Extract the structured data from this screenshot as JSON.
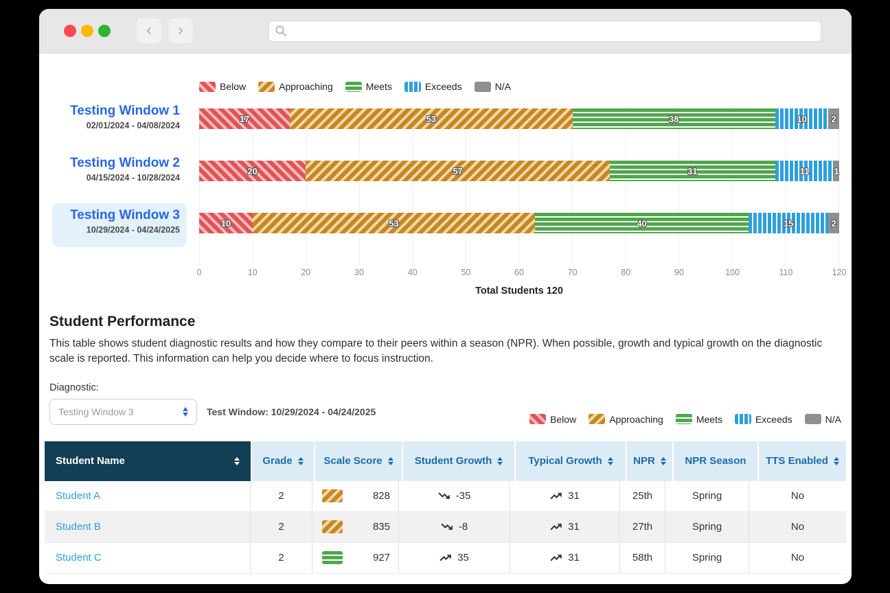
{
  "browser": {
    "search_placeholder": ""
  },
  "legend": {
    "items": [
      {
        "label": "Below",
        "band": "below"
      },
      {
        "label": "Approaching",
        "band": "approaching"
      },
      {
        "label": "Meets",
        "band": "meets"
      },
      {
        "label": "Exceeds",
        "band": "exceeds"
      },
      {
        "label": "N/A",
        "band": "na"
      }
    ]
  },
  "chart": {
    "total": 120,
    "x_ticks": [
      "0",
      "10",
      "20",
      "30",
      "40",
      "50",
      "60",
      "70",
      "80",
      "90",
      "100",
      "110",
      "120"
    ],
    "x_label": "Total Students 120",
    "rows": [
      {
        "title": "Testing Window 1",
        "dates": "02/01/2024 - 04/08/2024",
        "selected": "false",
        "values": [
          17,
          53,
          38,
          10,
          2
        ]
      },
      {
        "title": "Testing Window 2",
        "dates": "04/15/2024 - 10/28/2024",
        "selected": "false",
        "values": [
          20,
          57,
          31,
          11,
          1
        ]
      },
      {
        "title": "Testing Window 3",
        "dates": "10/29/2024 - 04/24/2025",
        "selected": "true",
        "values": [
          10,
          53,
          40,
          15,
          2
        ]
      }
    ]
  },
  "chart_data": {
    "type": "bar",
    "stacked": true,
    "orientation": "horizontal",
    "categories": [
      "Testing Window 1 (02/01/2024 - 04/08/2024)",
      "Testing Window 2 (04/15/2024 - 10/28/2024)",
      "Testing Window 3 (10/29/2024 - 04/24/2025)"
    ],
    "series": [
      {
        "name": "Below",
        "values": [
          17,
          20,
          10
        ]
      },
      {
        "name": "Approaching",
        "values": [
          53,
          57,
          53
        ]
      },
      {
        "name": "Meets",
        "values": [
          38,
          31,
          40
        ]
      },
      {
        "name": "Exceeds",
        "values": [
          10,
          11,
          15
        ]
      },
      {
        "name": "N/A",
        "values": [
          2,
          1,
          2
        ]
      }
    ],
    "xlabel": "Total Students 120",
    "xlim": [
      0,
      120
    ],
    "x_tick_step": 10,
    "legend_position": "top",
    "grid": true,
    "colors": {
      "Below": "#e05457",
      "Approaching": "#c8871f",
      "Meets": "#4fa84b",
      "Exceeds": "#2da0dc",
      "N/A": "#8f8f8f"
    }
  },
  "performance": {
    "title": "Student Performance",
    "description": "This table shows student diagnostic results and how they compare to their peers within a season (NPR). When possible, growth and typical growth on the diagnostic scale is reported. This information can help you decide where to focus instruction.",
    "diagnostic_label": "Diagnostic:",
    "diagnostic_value": "Testing Window 3",
    "test_window": "Test Window: 10/29/2024 - 04/24/2025"
  },
  "table": {
    "columns": [
      {
        "label": "Student Name",
        "sortable": true
      },
      {
        "label": "Grade",
        "sortable": true
      },
      {
        "label": "Scale Score",
        "sortable": true
      },
      {
        "label": "Student Growth",
        "sortable": true
      },
      {
        "label": "Typical Growth",
        "sortable": true
      },
      {
        "label": "NPR",
        "sortable": true
      },
      {
        "label": "NPR Season",
        "sortable": false
      },
      {
        "label": "TTS Enabled",
        "sortable": true
      }
    ],
    "rows": [
      {
        "name": "Student A",
        "grade": "2",
        "band": "approaching",
        "scale_score": "828",
        "student_growth": "-35",
        "student_growth_dir": "down",
        "typical_growth": "31",
        "typical_growth_dir": "up",
        "npr": "25th",
        "npr_season": "Spring",
        "tts_enabled": "No"
      },
      {
        "name": "Student B",
        "grade": "2",
        "band": "approaching",
        "scale_score": "835",
        "student_growth": "-8",
        "student_growth_dir": "down",
        "typical_growth": "31",
        "typical_growth_dir": "up",
        "npr": "27th",
        "npr_season": "Spring",
        "tts_enabled": "No"
      },
      {
        "name": "Student C",
        "grade": "2",
        "band": "meets",
        "scale_score": "927",
        "student_growth": "35",
        "student_growth_dir": "up",
        "typical_growth": "31",
        "typical_growth_dir": "up",
        "npr": "58th",
        "npr_season": "Spring",
        "tts_enabled": "No"
      }
    ]
  },
  "colors": {
    "window_chrome": "#e7e7e7",
    "traffic_red": "#f94956",
    "traffic_yellow": "#fcb902",
    "traffic_green": "#2eb42e",
    "title_blue": "#2866e4",
    "link_blue": "#2d9fd9",
    "header_dark": "#123f55",
    "header_light_bg": "#dcecf7",
    "header_text": "#1b6ca8",
    "selected_row_bg": "#e3f1fb"
  }
}
